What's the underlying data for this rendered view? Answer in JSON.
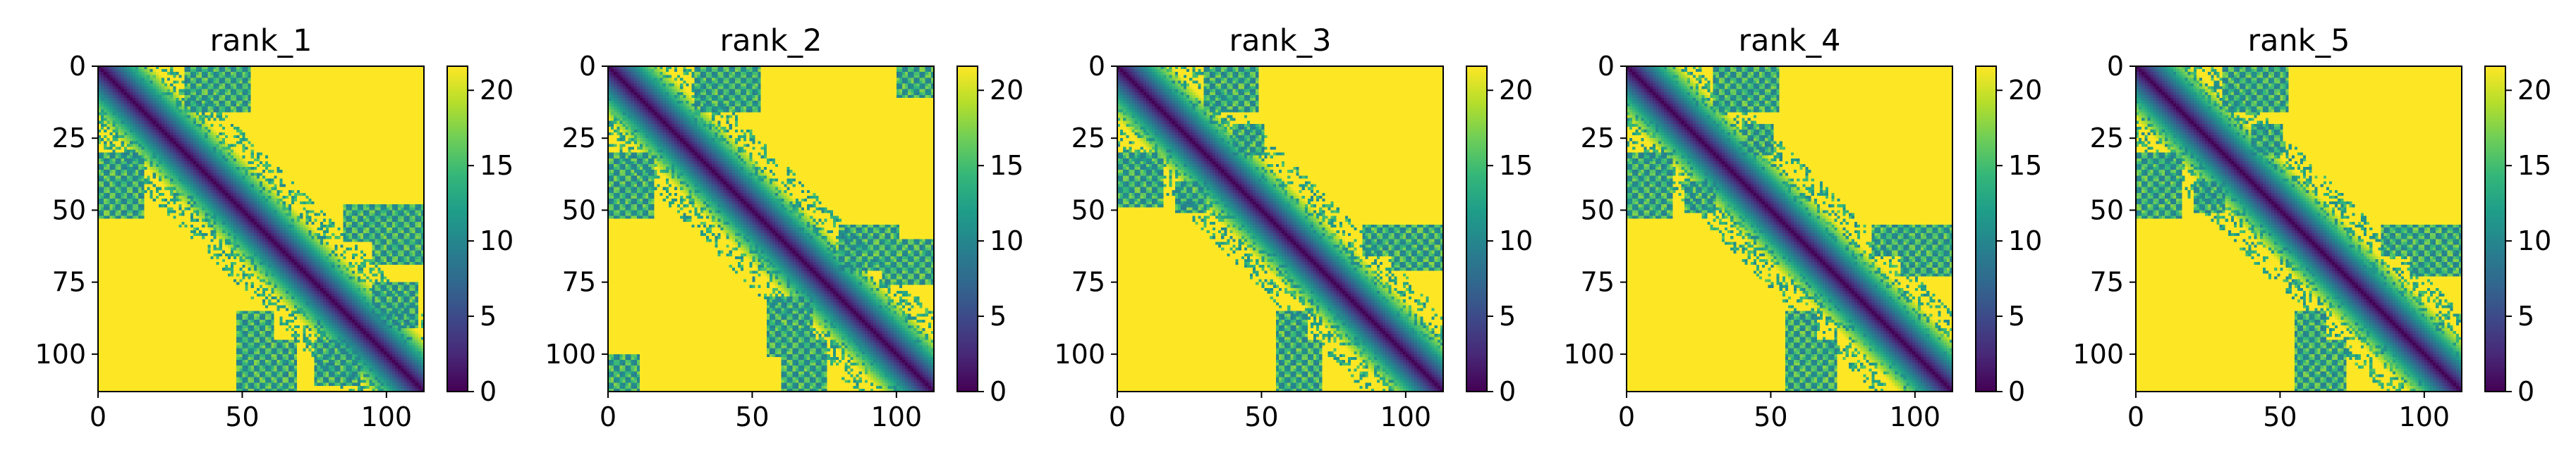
{
  "chart_data": [
    {
      "type": "heatmap",
      "title": "rank_1",
      "xlim": [
        0,
        113
      ],
      "ylim": [
        113,
        0
      ],
      "xticks": [
        "0",
        "50",
        "100"
      ],
      "yticks": [
        "0",
        "25",
        "50",
        "75",
        "100"
      ],
      "colorbar": {
        "range": [
          0,
          21.6
        ],
        "ticks": [
          "0",
          "5",
          "10",
          "15",
          "20"
        ],
        "colormap": "viridis"
      },
      "matrix_size": 113
    },
    {
      "type": "heatmap",
      "title": "rank_2",
      "xlim": [
        0,
        113
      ],
      "ylim": [
        113,
        0
      ],
      "xticks": [
        "0",
        "50",
        "100"
      ],
      "yticks": [
        "0",
        "25",
        "50",
        "75",
        "100"
      ],
      "colorbar": {
        "range": [
          0,
          21.6
        ],
        "ticks": [
          "0",
          "5",
          "10",
          "15",
          "20"
        ],
        "colormap": "viridis"
      },
      "matrix_size": 113
    },
    {
      "type": "heatmap",
      "title": "rank_3",
      "xlim": [
        0,
        113
      ],
      "ylim": [
        113,
        0
      ],
      "xticks": [
        "0",
        "50",
        "100"
      ],
      "yticks": [
        "0",
        "25",
        "50",
        "75",
        "100"
      ],
      "colorbar": {
        "range": [
          0,
          21.6
        ],
        "ticks": [
          "0",
          "5",
          "10",
          "15",
          "20"
        ],
        "colormap": "viridis"
      },
      "matrix_size": 113
    },
    {
      "type": "heatmap",
      "title": "rank_4",
      "xlim": [
        0,
        113
      ],
      "ylim": [
        113,
        0
      ],
      "xticks": [
        "0",
        "50",
        "100"
      ],
      "yticks": [
        "0",
        "25",
        "50",
        "75",
        "100"
      ],
      "colorbar": {
        "range": [
          0,
          21.6
        ],
        "ticks": [
          "0",
          "5",
          "10",
          "15",
          "20"
        ],
        "colormap": "viridis"
      },
      "matrix_size": 113
    },
    {
      "type": "heatmap",
      "title": "rank_5",
      "xlim": [
        0,
        113
      ],
      "ylim": [
        113,
        0
      ],
      "xticks": [
        "0",
        "50",
        "100"
      ],
      "yticks": [
        "0",
        "25",
        "50",
        "75",
        "100"
      ],
      "colorbar": {
        "range": [
          0,
          21.6
        ],
        "ticks": [
          "0",
          "5",
          "10",
          "15",
          "20"
        ],
        "colormap": "viridis"
      },
      "matrix_size": 113
    }
  ],
  "colors": {
    "background": "#ffffff",
    "viridis": [
      "#440154",
      "#482878",
      "#3e4989",
      "#31688e",
      "#26828e",
      "#1f9e89",
      "#35b779",
      "#6ece58",
      "#b5de2b",
      "#fde725"
    ]
  }
}
